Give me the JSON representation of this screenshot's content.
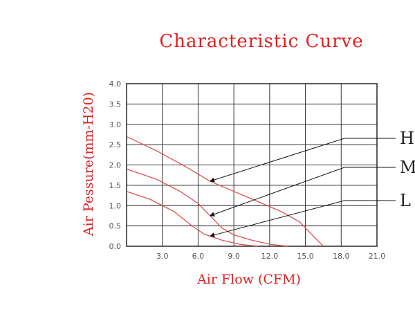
{
  "chart_data": {
    "type": "line",
    "title": "Characteristic Curve",
    "xlabel": "Air Flow (CFM)",
    "ylabel": "Air Pessure(mm-H20)",
    "xlim": [
      0,
      21
    ],
    "ylim": [
      0,
      4
    ],
    "x_ticks": [
      "3.0",
      "6.0",
      "9.0",
      "12.0",
      "15.0",
      "18.0",
      "21.0"
    ],
    "y_ticks": [
      "0.0",
      "0.5",
      "1.0",
      "1.5",
      "2.0",
      "2.5",
      "3.0",
      "3.5",
      "4.0"
    ],
    "grid": true,
    "series": [
      {
        "name": "H",
        "points": [
          [
            0,
            2.7
          ],
          [
            2.5,
            2.35
          ],
          [
            5.0,
            1.95
          ],
          [
            7.0,
            1.6
          ],
          [
            9.0,
            1.35
          ],
          [
            11.0,
            1.1
          ],
          [
            13.0,
            0.85
          ],
          [
            14.5,
            0.6
          ],
          [
            15.5,
            0.3
          ],
          [
            16.5,
            0.0
          ]
        ]
      },
      {
        "name": "M",
        "points": [
          [
            0,
            1.9
          ],
          [
            2.5,
            1.65
          ],
          [
            4.5,
            1.35
          ],
          [
            6.0,
            1.05
          ],
          [
            7.0,
            0.75
          ],
          [
            8.0,
            0.45
          ],
          [
            9.0,
            0.28
          ],
          [
            10.5,
            0.15
          ],
          [
            12.0,
            0.05
          ],
          [
            13.5,
            0.0
          ]
        ]
      },
      {
        "name": "L",
        "points": [
          [
            0,
            1.35
          ],
          [
            2.0,
            1.15
          ],
          [
            4.0,
            0.85
          ],
          [
            5.5,
            0.5
          ],
          [
            6.5,
            0.3
          ],
          [
            8.0,
            0.15
          ],
          [
            9.5,
            0.05
          ],
          [
            11.0,
            0.0
          ]
        ]
      }
    ],
    "colors": {
      "curve": "#e05050",
      "grid": "#333333",
      "title": "#e02020",
      "leader": "#111111"
    }
  }
}
